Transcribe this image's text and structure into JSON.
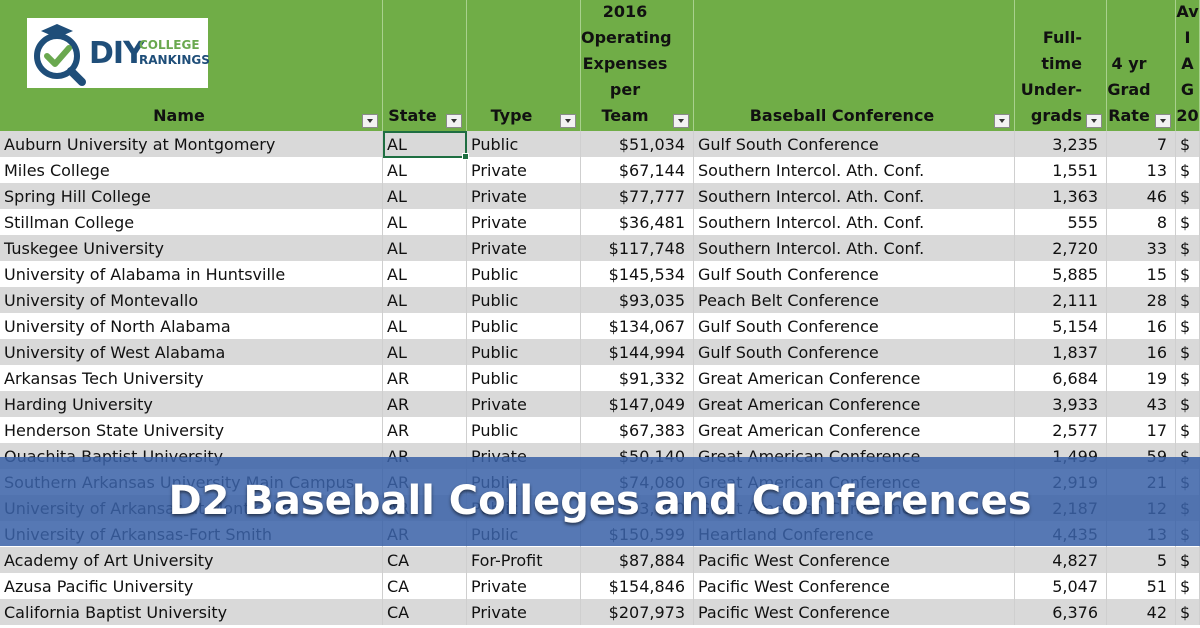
{
  "colors": {
    "header_bg": "#70ad47",
    "row_alt": "#d9d9d9",
    "row_plain": "#ffffff",
    "banner_bg": "#3a62a8",
    "logo_navy": "#1f4e79",
    "logo_green": "#6aa84f"
  },
  "logo": {
    "brand_diy": "DIY",
    "brand_college": "COLLEGE",
    "brand_rankings": "RANKINGS"
  },
  "banner": {
    "title": "D2 Baseball Colleges and Conferences"
  },
  "headers": [
    "Name",
    "State",
    "Type",
    "2016\nOperating\nExpenses per\nTeam",
    "Baseball Conference",
    "Full-time\nUnder-\ngrads",
    "4 yr\nGrad\nRate",
    "Av\nI\nA\nG\n20"
  ],
  "rows": [
    [
      "Auburn University at Montgomery",
      "AL",
      "Public",
      "$51,034",
      "Gulf South Conference",
      "3,235",
      "7",
      "$"
    ],
    [
      "Miles College",
      "AL",
      "Private",
      "$67,144",
      "Southern Intercol. Ath. Conf.",
      "1,551",
      "13",
      "$"
    ],
    [
      "Spring Hill College",
      "AL",
      "Private",
      "$77,777",
      "Southern Intercol. Ath. Conf.",
      "1,363",
      "46",
      "$"
    ],
    [
      "Stillman College",
      "AL",
      "Private",
      "$36,481",
      "Southern Intercol. Ath. Conf.",
      "555",
      "8",
      "$"
    ],
    [
      "Tuskegee University",
      "AL",
      "Private",
      "$117,748",
      "Southern Intercol. Ath. Conf.",
      "2,720",
      "33",
      "$"
    ],
    [
      "University of Alabama in Huntsville",
      "AL",
      "Public",
      "$145,534",
      "Gulf South Conference",
      "5,885",
      "15",
      "$"
    ],
    [
      "University of Montevallo",
      "AL",
      "Public",
      "$93,035",
      "Peach Belt Conference",
      "2,111",
      "28",
      "$"
    ],
    [
      "University of North Alabama",
      "AL",
      "Public",
      "$134,067",
      "Gulf South Conference",
      "5,154",
      "16",
      "$"
    ],
    [
      "University of West Alabama",
      "AL",
      "Public",
      "$144,994",
      "Gulf South Conference",
      "1,837",
      "16",
      "$"
    ],
    [
      "Arkansas Tech University",
      "AR",
      "Public",
      "$91,332",
      "Great American Conference",
      "6,684",
      "19",
      "$"
    ],
    [
      "Harding University",
      "AR",
      "Private",
      "$147,049",
      "Great American Conference",
      "3,933",
      "43",
      "$"
    ],
    [
      "Henderson State University",
      "AR",
      "Public",
      "$67,383",
      "Great American Conference",
      "2,577",
      "17",
      "$"
    ],
    [
      "Ouachita Baptist University",
      "AR",
      "Private",
      "$50,140",
      "Great American Conference",
      "1,499",
      "59",
      "$"
    ],
    [
      "Southern Arkansas University Main Campus",
      "AR",
      "Public",
      "$74,080",
      "Great American Conference",
      "2,919",
      "21",
      "$"
    ],
    [
      "University of Arkansas at Monticello",
      "AR",
      "Public",
      "$63,000",
      "Great American Conference",
      "2,187",
      "12",
      "$"
    ],
    [
      "University of Arkansas-Fort Smith",
      "AR",
      "Public",
      "$150,599",
      "Heartland Conference",
      "4,435",
      "13",
      "$"
    ],
    [
      "Academy of Art University",
      "CA",
      "For-Profit",
      "$87,884",
      "Pacific West Conference",
      "4,827",
      "5",
      "$"
    ],
    [
      "Azusa Pacific University",
      "CA",
      "Private",
      "$154,846",
      "Pacific West Conference",
      "5,047",
      "51",
      "$"
    ],
    [
      "California Baptist University",
      "CA",
      "Private",
      "$207,973",
      "Pacific West Conference",
      "6,376",
      "42",
      "$"
    ]
  ]
}
